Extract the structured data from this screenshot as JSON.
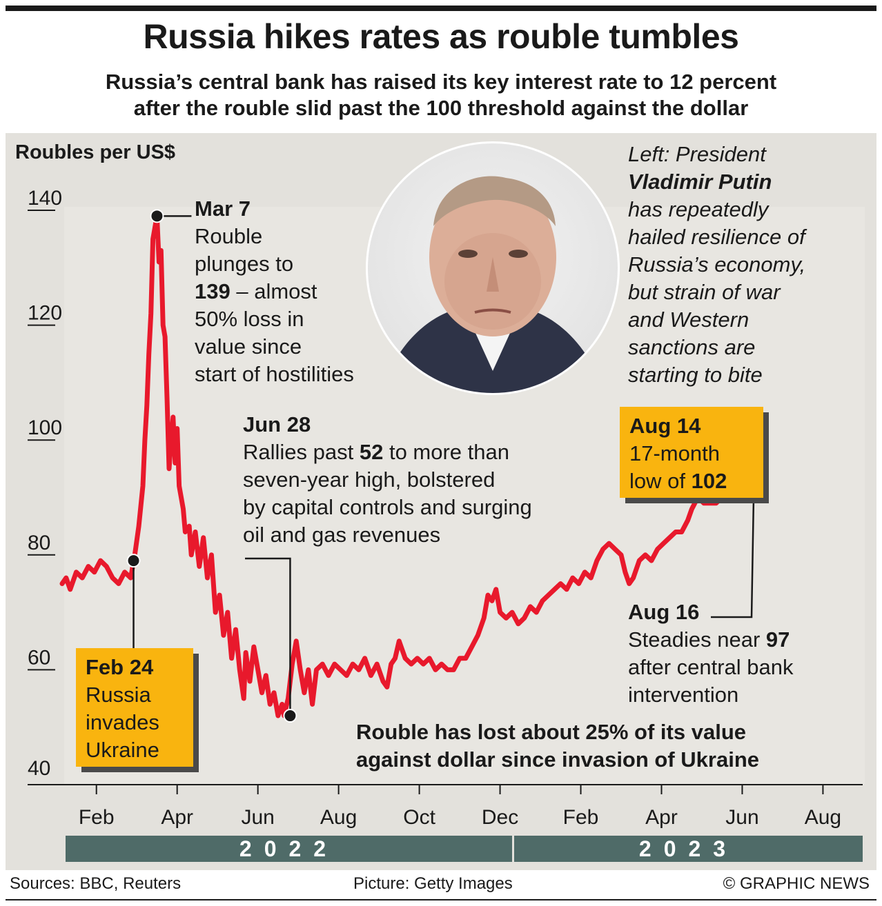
{
  "header": {
    "title": "Russia hikes rates as rouble tumbles",
    "subtitle_line1": "Russia’s central bank has raised its key interest rate to 12 percent",
    "subtitle_line2": "after the rouble slid past the 100 threshold against the dollar"
  },
  "chart_data": {
    "type": "line",
    "title": "Roubles per US$",
    "ylabel": "Roubles per US$",
    "ylim": [
      40,
      140
    ],
    "yticks": [
      "140",
      "120",
      "100",
      "80",
      "60",
      "40"
    ],
    "x_ticks": [
      "Feb",
      "Apr",
      "Jun",
      "Aug",
      "Oct",
      "Dec",
      "Feb",
      "Apr",
      "Jun",
      "Aug"
    ],
    "years": [
      "2022",
      "2023"
    ],
    "xlim": [
      0,
      19.8
    ],
    "x_unit": "months since 2022-01-01",
    "series": [
      {
        "name": "Roubles per US$",
        "color": "#e8192c",
        "points": [
          [
            0.0,
            75
          ],
          [
            0.1,
            76
          ],
          [
            0.2,
            74
          ],
          [
            0.35,
            77
          ],
          [
            0.5,
            76
          ],
          [
            0.65,
            78
          ],
          [
            0.8,
            77
          ],
          [
            0.95,
            79
          ],
          [
            1.1,
            78
          ],
          [
            1.25,
            76
          ],
          [
            1.4,
            75
          ],
          [
            1.55,
            77
          ],
          [
            1.7,
            76
          ],
          [
            1.75,
            78
          ],
          [
            1.8,
            80
          ],
          [
            1.9,
            85
          ],
          [
            2.0,
            92
          ],
          [
            2.05,
            100
          ],
          [
            2.1,
            106
          ],
          [
            2.15,
            115
          ],
          [
            2.2,
            122
          ],
          [
            2.25,
            135
          ],
          [
            2.3,
            137
          ],
          [
            2.35,
            139
          ],
          [
            2.4,
            131
          ],
          [
            2.45,
            133
          ],
          [
            2.5,
            120
          ],
          [
            2.55,
            118
          ],
          [
            2.6,
            107
          ],
          [
            2.65,
            95
          ],
          [
            2.7,
            100
          ],
          [
            2.75,
            104
          ],
          [
            2.8,
            96
          ],
          [
            2.85,
            102
          ],
          [
            2.9,
            92
          ],
          [
            3.0,
            88
          ],
          [
            3.05,
            84
          ],
          [
            3.15,
            85
          ],
          [
            3.2,
            80
          ],
          [
            3.3,
            84
          ],
          [
            3.4,
            78
          ],
          [
            3.5,
            83
          ],
          [
            3.6,
            76
          ],
          [
            3.7,
            80
          ],
          [
            3.8,
            70
          ],
          [
            3.9,
            73
          ],
          [
            4.0,
            66
          ],
          [
            4.1,
            70
          ],
          [
            4.2,
            62
          ],
          [
            4.3,
            67
          ],
          [
            4.4,
            60
          ],
          [
            4.5,
            55
          ],
          [
            4.55,
            63
          ],
          [
            4.65,
            58
          ],
          [
            4.75,
            64
          ],
          [
            4.85,
            60
          ],
          [
            4.95,
            56
          ],
          [
            5.05,
            59
          ],
          [
            5.15,
            54
          ],
          [
            5.25,
            56
          ],
          [
            5.35,
            52
          ],
          [
            5.45,
            54
          ],
          [
            5.5,
            52
          ],
          [
            5.6,
            55
          ],
          [
            5.7,
            61
          ],
          [
            5.8,
            65
          ],
          [
            5.9,
            60
          ],
          [
            6.0,
            56
          ],
          [
            6.1,
            60
          ],
          [
            6.2,
            54
          ],
          [
            6.3,
            60
          ],
          [
            6.45,
            61
          ],
          [
            6.6,
            59
          ],
          [
            6.75,
            61
          ],
          [
            6.9,
            60
          ],
          [
            7.05,
            59
          ],
          [
            7.2,
            61
          ],
          [
            7.35,
            60
          ],
          [
            7.5,
            62
          ],
          [
            7.65,
            59
          ],
          [
            7.8,
            61
          ],
          [
            7.95,
            58
          ],
          [
            8.05,
            57
          ],
          [
            8.15,
            61
          ],
          [
            8.25,
            62
          ],
          [
            8.35,
            65
          ],
          [
            8.5,
            62
          ],
          [
            8.65,
            61
          ],
          [
            8.8,
            62
          ],
          [
            8.95,
            61
          ],
          [
            9.1,
            62
          ],
          [
            9.25,
            60
          ],
          [
            9.4,
            61
          ],
          [
            9.55,
            60
          ],
          [
            9.7,
            60
          ],
          [
            9.85,
            62
          ],
          [
            10.0,
            62
          ],
          [
            10.15,
            64
          ],
          [
            10.3,
            66
          ],
          [
            10.45,
            69
          ],
          [
            10.55,
            73
          ],
          [
            10.65,
            72
          ],
          [
            10.75,
            74
          ],
          [
            10.85,
            70
          ],
          [
            11.0,
            69
          ],
          [
            11.15,
            70
          ],
          [
            11.3,
            68
          ],
          [
            11.45,
            69
          ],
          [
            11.6,
            71
          ],
          [
            11.75,
            70
          ],
          [
            11.9,
            72
          ],
          [
            12.05,
            73
          ],
          [
            12.2,
            74
          ],
          [
            12.35,
            75
          ],
          [
            12.5,
            74
          ],
          [
            12.65,
            76
          ],
          [
            12.8,
            75
          ],
          [
            12.95,
            77
          ],
          [
            13.1,
            76
          ],
          [
            13.25,
            79
          ],
          [
            13.4,
            81
          ],
          [
            13.55,
            82
          ],
          [
            13.7,
            81
          ],
          [
            13.85,
            80
          ],
          [
            13.95,
            77
          ],
          [
            14.05,
            75
          ],
          [
            14.15,
            76
          ],
          [
            14.3,
            79
          ],
          [
            14.45,
            80
          ],
          [
            14.6,
            79
          ],
          [
            14.75,
            81
          ],
          [
            14.9,
            82
          ],
          [
            15.05,
            83
          ],
          [
            15.2,
            84
          ],
          [
            15.35,
            84
          ],
          [
            15.5,
            86
          ],
          [
            15.6,
            88
          ],
          [
            15.75,
            90
          ],
          [
            15.9,
            89
          ],
          [
            16.05,
            89
          ],
          [
            16.2,
            89
          ],
          [
            16.35,
            90
          ],
          [
            16.5,
            92
          ],
          [
            16.65,
            95
          ],
          [
            16.8,
            96
          ],
          [
            16.95,
            98
          ],
          [
            17.05,
            99
          ],
          [
            17.1,
            102
          ],
          [
            17.15,
            97
          ]
        ]
      }
    ],
    "annotations": [
      {
        "date": "Feb 24",
        "value": 79,
        "text": [
          "Russia",
          "invades",
          "Ukraine"
        ]
      },
      {
        "date": "Mar 7",
        "value": 139
      },
      {
        "date": "Jun 28",
        "value": 52
      },
      {
        "date": "Aug 14",
        "value": 102
      },
      {
        "date": "Aug 16",
        "value": 97
      }
    ]
  },
  "annotations": {
    "feb24": {
      "date": "Feb 24",
      "l1": "Russia",
      "l2": "invades",
      "l3": "Ukraine"
    },
    "mar7": {
      "date": "Mar 7",
      "l1": "Rouble",
      "l2": "plunges to",
      "l3_value": "139",
      "l3_rest": " – almost",
      "l4": "50% loss in",
      "l5": "value since",
      "l6": "start of hostilities"
    },
    "jun28": {
      "date": "Jun 28",
      "l1_pre": "Rallies past ",
      "l1_value": "52",
      "l1_post": " to more than",
      "l2": "seven-year high, bolstered",
      "l3": "by capital controls and surging",
      "l4": "oil and gas revenues"
    },
    "aug14": {
      "date": "Aug 14",
      "l1": "17-month",
      "l2_pre": "low of ",
      "l2_value": "102"
    },
    "aug16": {
      "date": "Aug 16",
      "l1_pre": "Steadies near ",
      "l1_value": "97",
      "l2": "after central bank",
      "l3": "intervention"
    },
    "summary_line1": "Rouble has lost about 25% of its value",
    "summary_line2": "against dollar since invasion of Ukraine"
  },
  "photo_caption": {
    "l1": "Left: President",
    "name": "Vladimir Putin",
    "l2": "has repeatedly",
    "l3": "hailed resilience of",
    "l4": "Russia’s economy,",
    "l5": "but strain of war",
    "l6": "and Western",
    "l7": "sanctions are",
    "l8": "starting to bite"
  },
  "footer": {
    "sources": "Sources: BBC, Reuters",
    "picture": "Picture: Getty Images",
    "credit": "© GRAPHIC NEWS"
  },
  "colors": {
    "line": "#e8192c",
    "panel": "#e3e1dc",
    "callout_box": "#f9b40f",
    "year_bar": "#4f6b68"
  }
}
